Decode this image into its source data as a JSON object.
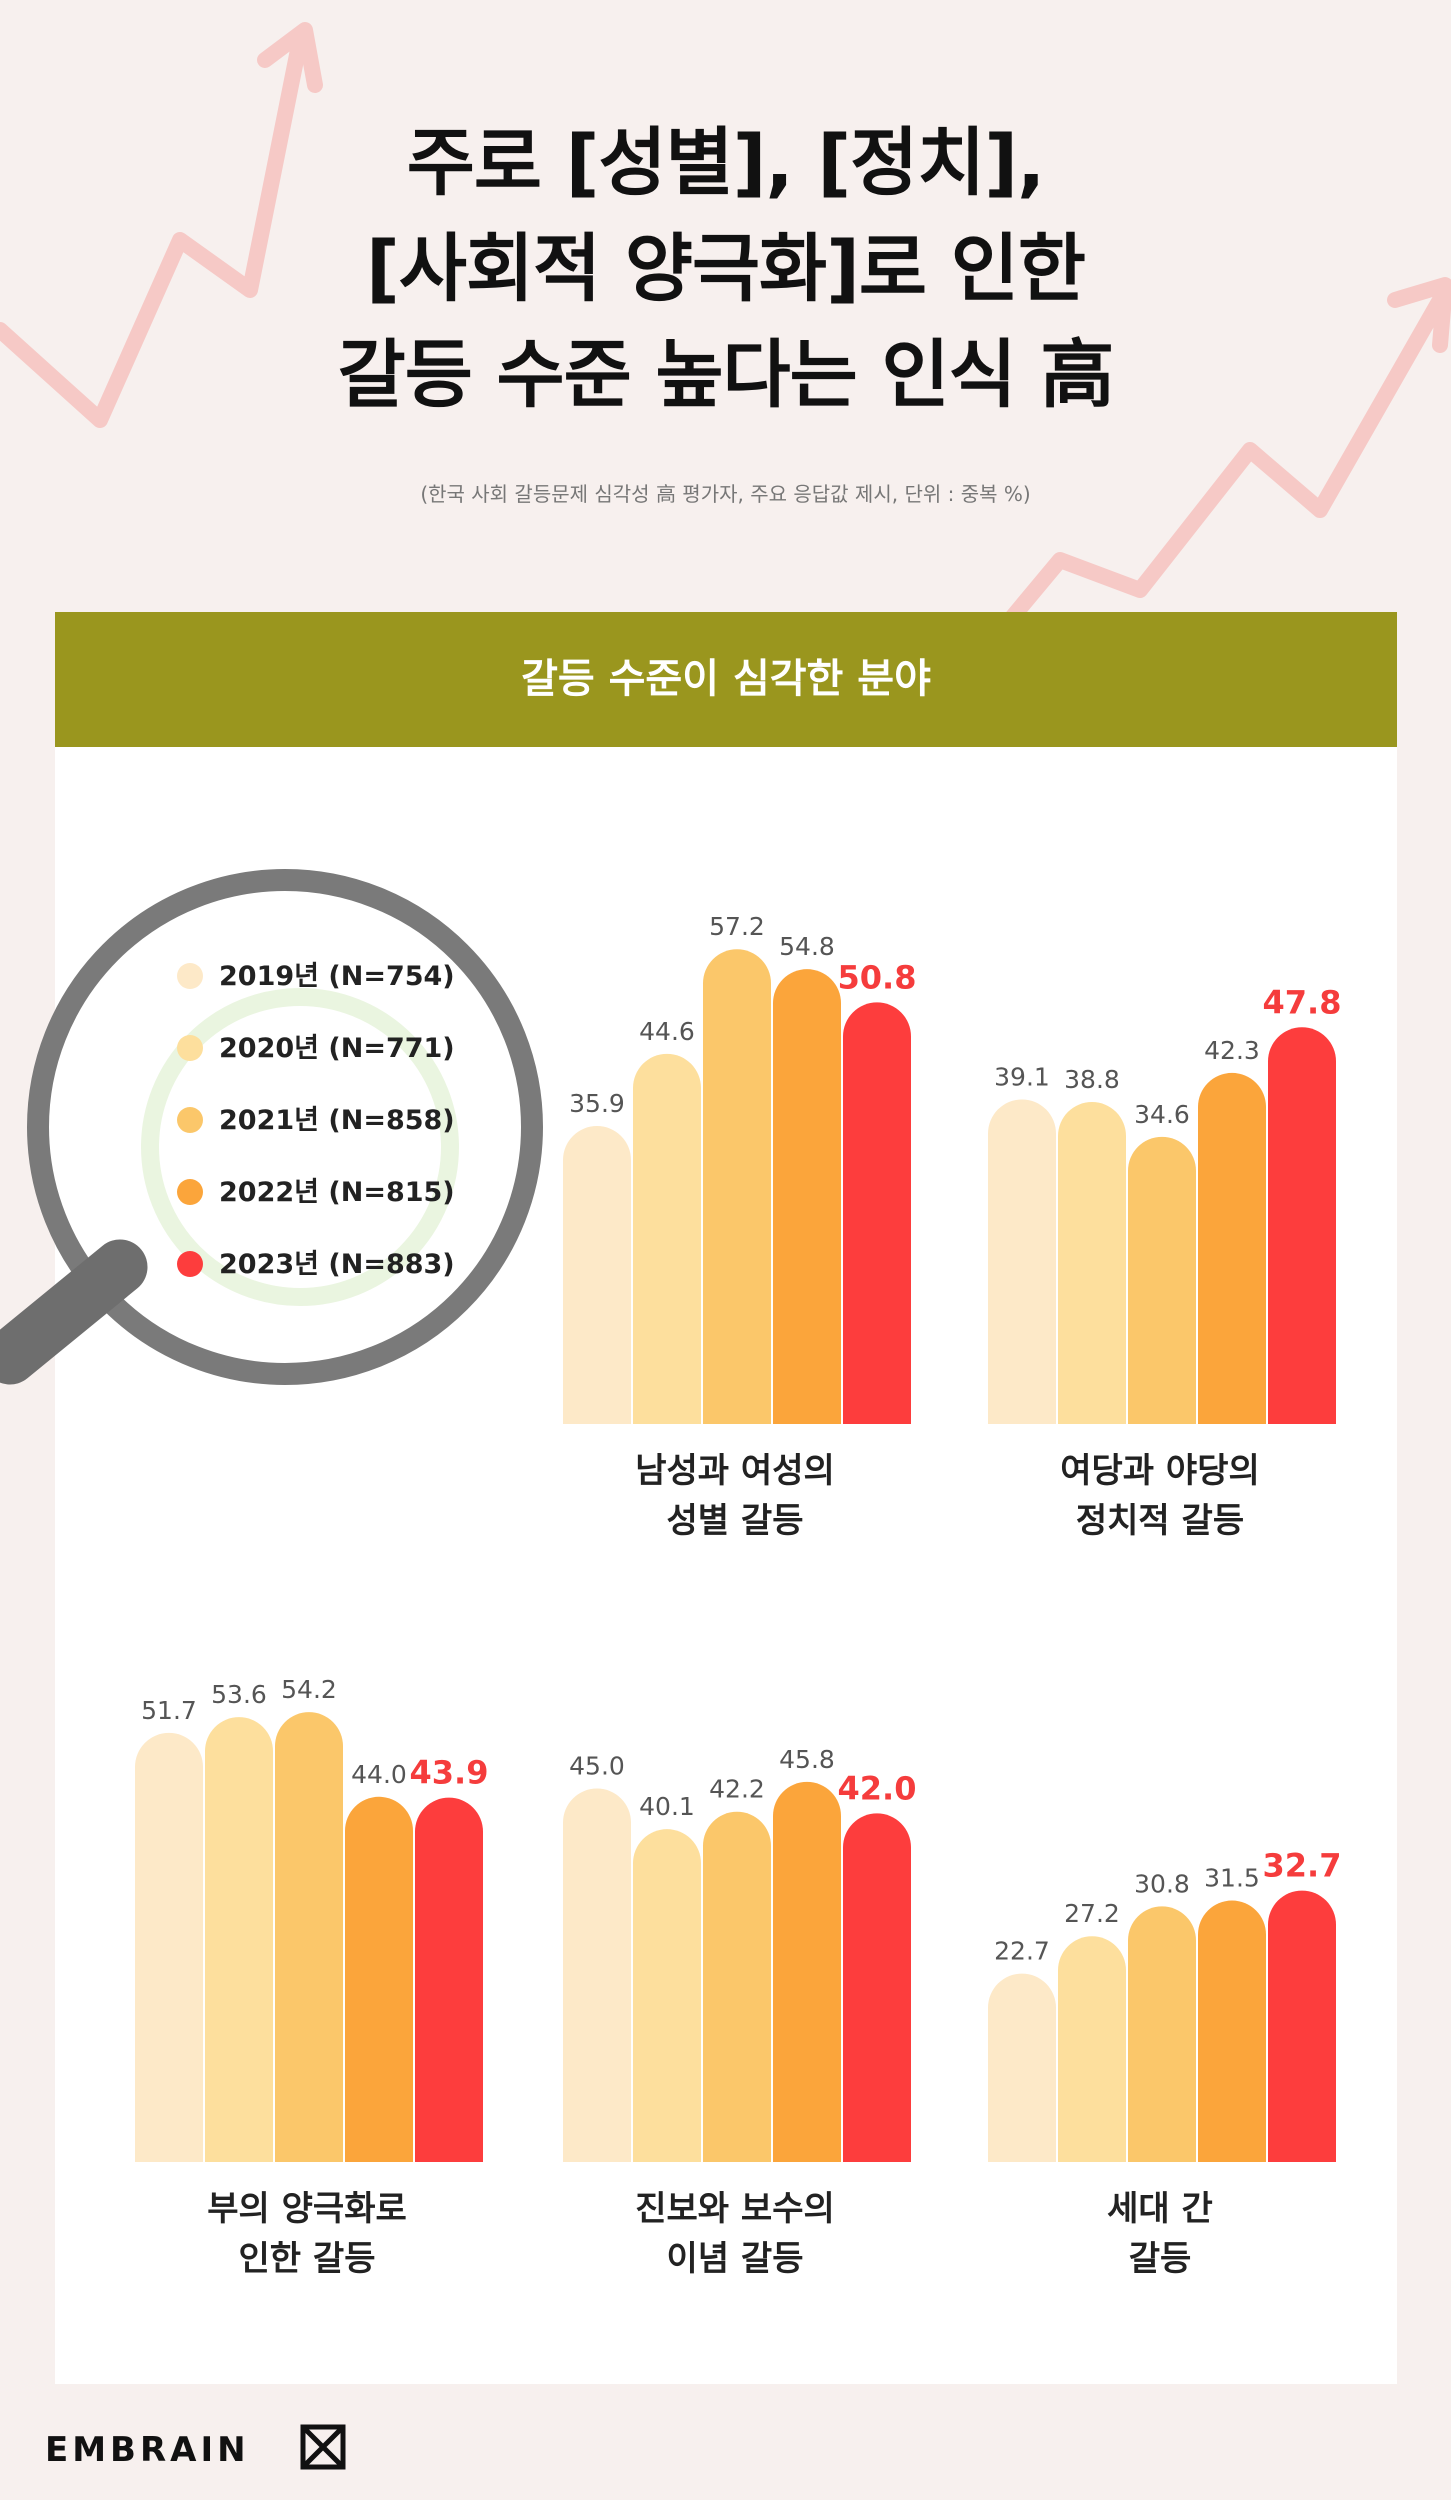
{
  "title_lines": [
    "주로 [성별], [정치],",
    "[사회적 양극화]로 인한",
    "갈등 수준 높다는 인식 高"
  ],
  "subtitle": "(한국 사회 갈등문제 심각성 高 평가자, 주요 응답값 제시, 단위 : 중복 %)",
  "header": "갈등 수준이 심각한 분야",
  "logo_text": "EMBRAIN",
  "colors": {
    "2019": "#fde9c8",
    "2020": "#fddf9d",
    "2021": "#fbc76a",
    "2022": "#fba53b",
    "2023": "#fd3d3d"
  },
  "chart_data": {
    "type": "bar",
    "series": [
      {
        "name": "2019년 (N=754)"
      },
      {
        "name": "2020년 (N=771)"
      },
      {
        "name": "2021년 (N=858)"
      },
      {
        "name": "2022년 (N=815)"
      },
      {
        "name": "2023년 (N=883)"
      }
    ],
    "unit": "%",
    "charts": [
      {
        "category": [
          "남성과 여성의",
          "성별 갈등"
        ],
        "values": [
          35.9,
          44.6,
          57.2,
          54.8,
          50.8
        ]
      },
      {
        "category": [
          "여당과 야당의",
          "정치적 갈등"
        ],
        "values": [
          39.1,
          38.8,
          34.6,
          42.3,
          47.8
        ]
      },
      {
        "category": [
          "부의 양극화로",
          "인한 갈등"
        ],
        "values": [
          51.7,
          53.6,
          54.2,
          44.0,
          43.9
        ]
      },
      {
        "category": [
          "진보와 보수의",
          "이념 갈등"
        ],
        "values": [
          45.0,
          40.1,
          42.2,
          45.8,
          42.0
        ]
      },
      {
        "category": [
          "세대 간",
          "갈등"
        ],
        "values": [
          22.7,
          27.2,
          30.8,
          31.5,
          32.7
        ]
      }
    ]
  }
}
